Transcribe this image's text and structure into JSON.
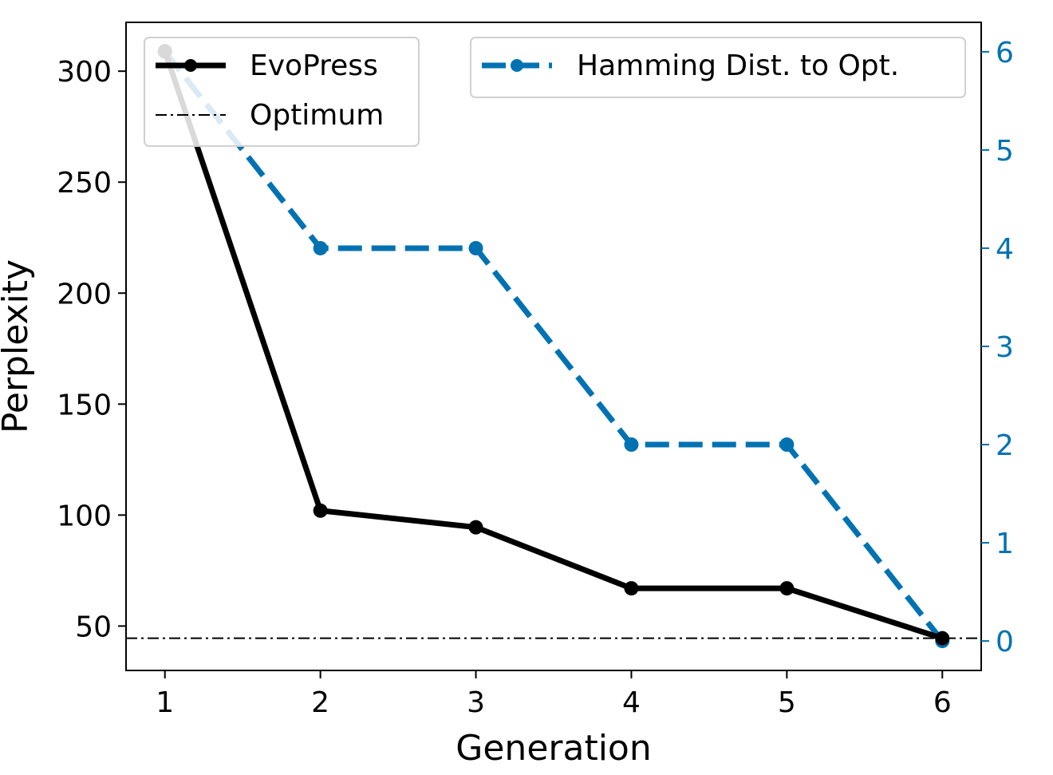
{
  "chart_data": {
    "type": "line",
    "xlabel": "Generation",
    "ylabel": "Perplexity",
    "x": [
      1,
      2,
      3,
      4,
      5,
      6
    ],
    "xticks": [
      "1",
      "2",
      "3",
      "4",
      "5",
      "6"
    ],
    "xlim": [
      0.75,
      6.25
    ],
    "ylim": [
      30,
      322
    ],
    "yticks": [
      "50",
      "100",
      "150",
      "200",
      "250",
      "300"
    ],
    "y2lim": [
      -0.3,
      6.3
    ],
    "y2ticks": [
      "0",
      "1",
      "2",
      "3",
      "4",
      "5",
      "6"
    ],
    "grid": false,
    "series": [
      {
        "name": "EvoPress",
        "axis": "left",
        "values": [
          309,
          102,
          94.5,
          67,
          67,
          44.5
        ],
        "color": "#000000",
        "style": "solid",
        "marker": "circle"
      },
      {
        "name": "Hamming Dist. to Opt.",
        "axis": "right",
        "values": [
          6,
          4,
          4,
          2,
          2,
          0
        ],
        "color": "#0072b2",
        "style": "dashed",
        "marker": "circle"
      }
    ],
    "reference_lines": [
      {
        "name": "Optimum",
        "axis": "left",
        "value": 44.5,
        "color": "#000000",
        "style": "dashdot"
      }
    ],
    "legends": [
      {
        "placement": "upper-left",
        "entries": [
          "EvoPress",
          "Optimum"
        ]
      },
      {
        "placement": "upper-right",
        "entries": [
          "Hamming Dist. to Opt."
        ]
      }
    ],
    "right_axis_color": "#0072b2"
  }
}
